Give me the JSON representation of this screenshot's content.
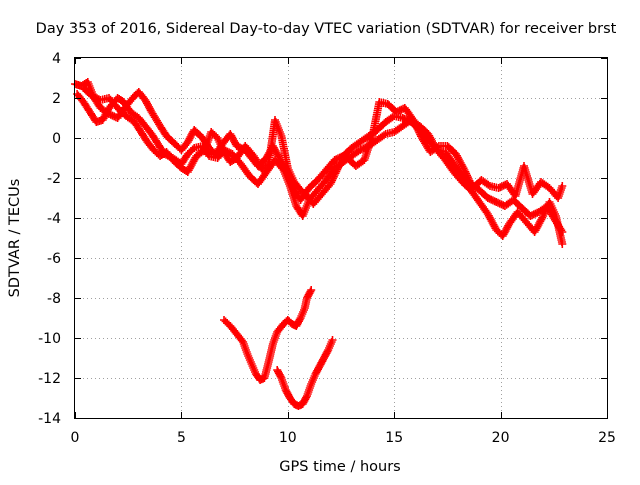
{
  "chart_data": {
    "type": "scatter",
    "title": "Day 353 of 2016, Sidereal Day-to-day VTEC variation (SDTVAR) for receiver brst",
    "xlabel": "GPS time / hours",
    "ylabel": "SDTVAR / TECUs",
    "xlim": [
      0,
      25
    ],
    "ylim": [
      -14,
      4
    ],
    "grid": true,
    "x_ticks": [
      0,
      5,
      10,
      15,
      20,
      25
    ],
    "x_tick_labels": [
      "0",
      "5",
      "10",
      "15",
      "20",
      "25"
    ],
    "y_ticks": [
      4,
      2,
      0,
      -2,
      -4,
      -6,
      -8,
      -10,
      -12,
      -14
    ],
    "y_tick_labels": [
      "4",
      "2",
      "0",
      "-2",
      "-4",
      "-6",
      "-8",
      "-10",
      "-12",
      "-14"
    ],
    "marker": "+",
    "marker_color": "#ff0000",
    "series": [
      {
        "name": "track-1",
        "points": [
          [
            0.0,
            2.7
          ],
          [
            0.3,
            2.6
          ],
          [
            0.6,
            2.8
          ],
          [
            0.9,
            2.0
          ],
          [
            1.2,
            1.5
          ],
          [
            1.6,
            1.2
          ],
          [
            2.0,
            1.0
          ],
          [
            2.4,
            1.6
          ],
          [
            2.8,
            2.1
          ],
          [
            3.0,
            2.3
          ],
          [
            3.3,
            1.9
          ],
          [
            3.6,
            1.3
          ],
          [
            4.0,
            0.6
          ],
          [
            4.3,
            0.1
          ],
          [
            4.7,
            -0.3
          ],
          [
            5.0,
            -0.6
          ],
          [
            5.3,
            -0.2
          ],
          [
            5.6,
            0.4
          ],
          [
            6.0,
            0.0
          ],
          [
            6.3,
            -0.5
          ],
          [
            6.6,
            -0.8
          ],
          [
            7.0,
            -0.2
          ],
          [
            7.3,
            0.2
          ],
          [
            7.6,
            -0.4
          ],
          [
            8.0,
            -0.6
          ],
          [
            8.3,
            -1.0
          ],
          [
            8.6,
            -1.4
          ],
          [
            9.0,
            -1.0
          ],
          [
            9.3,
            -0.4
          ],
          [
            9.6,
            -1.0
          ],
          [
            10.0,
            -1.8
          ],
          [
            10.3,
            -2.6
          ],
          [
            10.6,
            -3.1
          ],
          [
            11.0,
            -2.5
          ],
          [
            11.4,
            -2.1
          ],
          [
            11.8,
            -1.6
          ],
          [
            12.2,
            -1.1
          ],
          [
            12.6,
            -0.9
          ],
          [
            13.0,
            -0.5
          ],
          [
            13.4,
            -0.2
          ],
          [
            13.8,
            0.1
          ],
          [
            14.2,
            0.4
          ],
          [
            14.6,
            0.8
          ],
          [
            15.0,
            1.1
          ],
          [
            15.4,
            1.0
          ],
          [
            15.8,
            0.8
          ],
          [
            16.2,
            0.4
          ],
          [
            16.6,
            -0.1
          ],
          [
            17.0,
            -0.6
          ],
          [
            17.4,
            -0.7
          ],
          [
            17.8,
            -1.3
          ],
          [
            18.2,
            -1.9
          ],
          [
            18.6,
            -2.3
          ],
          [
            19.0,
            -2.6
          ],
          [
            19.4,
            -3.0
          ],
          [
            19.8,
            -3.2
          ],
          [
            20.2,
            -3.4
          ],
          [
            20.6,
            -3.1
          ],
          [
            21.0,
            -3.5
          ],
          [
            21.4,
            -3.9
          ],
          [
            21.8,
            -3.7
          ],
          [
            22.2,
            -3.4
          ],
          [
            22.5,
            -4.0
          ],
          [
            22.9,
            -4.7
          ]
        ]
      },
      {
        "name": "track-2",
        "points": [
          [
            0.1,
            2.2
          ],
          [
            0.4,
            1.8
          ],
          [
            0.7,
            1.3
          ],
          [
            1.0,
            0.8
          ],
          [
            1.3,
            0.9
          ],
          [
            1.6,
            1.5
          ],
          [
            2.0,
            2.0
          ],
          [
            2.3,
            1.8
          ],
          [
            2.6,
            1.3
          ],
          [
            3.0,
            1.0
          ],
          [
            3.3,
            0.6
          ],
          [
            3.6,
            0.2
          ],
          [
            3.9,
            -0.3
          ],
          [
            4.2,
            -0.8
          ],
          [
            4.6,
            -1.0
          ],
          [
            5.0,
            -1.3
          ],
          [
            5.3,
            -0.8
          ],
          [
            5.6,
            -0.5
          ],
          [
            6.0,
            -0.4
          ],
          [
            6.3,
            -0.9
          ],
          [
            6.7,
            -1.0
          ],
          [
            7.0,
            -0.6
          ],
          [
            7.4,
            -0.8
          ],
          [
            7.8,
            -1.3
          ],
          [
            8.2,
            -1.9
          ],
          [
            8.6,
            -2.3
          ],
          [
            9.0,
            -1.7
          ],
          [
            9.4,
            -1.1
          ],
          [
            9.8,
            -1.6
          ],
          [
            10.1,
            -2.4
          ],
          [
            10.4,
            -3.4
          ],
          [
            10.7,
            -3.9
          ],
          [
            11.0,
            -3.1
          ],
          [
            11.4,
            -2.6
          ],
          [
            11.8,
            -2.1
          ],
          [
            12.2,
            -1.5
          ],
          [
            12.6,
            -1.2
          ],
          [
            13.0,
            -0.9
          ],
          [
            13.4,
            -0.6
          ],
          [
            13.8,
            -0.4
          ],
          [
            14.2,
            -0.1
          ],
          [
            14.6,
            0.2
          ],
          [
            15.0,
            0.3
          ],
          [
            15.4,
            0.6
          ],
          [
            15.8,
            0.9
          ],
          [
            16.2,
            0.6
          ],
          [
            16.6,
            0.2
          ],
          [
            17.0,
            -0.6
          ],
          [
            17.4,
            -1.1
          ],
          [
            17.8,
            -1.7
          ],
          [
            18.2,
            -2.2
          ],
          [
            18.6,
            -2.6
          ],
          [
            19.0,
            -3.2
          ],
          [
            19.4,
            -3.8
          ],
          [
            19.8,
            -4.6
          ],
          [
            20.1,
            -4.9
          ],
          [
            20.4,
            -4.3
          ],
          [
            20.8,
            -3.7
          ],
          [
            21.2,
            -4.2
          ],
          [
            21.6,
            -4.7
          ],
          [
            22.0,
            -3.9
          ],
          [
            22.3,
            -3.2
          ],
          [
            22.6,
            -3.9
          ],
          [
            22.9,
            -5.3
          ]
        ]
      },
      {
        "name": "track-3",
        "points": [
          [
            0.4,
            2.5
          ],
          [
            0.8,
            2.1
          ],
          [
            1.2,
            1.9
          ],
          [
            1.6,
            2.0
          ],
          [
            2.0,
            1.5
          ],
          [
            2.4,
            1.1
          ],
          [
            2.8,
            0.8
          ],
          [
            3.1,
            0.3
          ],
          [
            3.4,
            -0.2
          ],
          [
            3.7,
            -0.6
          ],
          [
            4.0,
            -0.9
          ],
          [
            4.3,
            -0.7
          ],
          [
            4.6,
            -1.1
          ],
          [
            5.0,
            -1.5
          ],
          [
            5.3,
            -1.7
          ],
          [
            5.7,
            -0.9
          ],
          [
            6.1,
            -0.6
          ],
          [
            6.4,
            0.3
          ],
          [
            6.7,
            0.0
          ],
          [
            7.0,
            -0.7
          ],
          [
            7.3,
            -1.2
          ],
          [
            7.6,
            -1.0
          ],
          [
            8.0,
            -0.4
          ],
          [
            8.4,
            -0.9
          ],
          [
            8.8,
            -1.6
          ],
          [
            9.1,
            -1.3
          ],
          [
            9.4,
            0.9
          ],
          [
            9.7,
            0.1
          ],
          [
            10.0,
            -1.5
          ],
          [
            10.3,
            -2.2
          ],
          [
            10.6,
            -2.6
          ],
          [
            10.9,
            -2.9
          ],
          [
            11.2,
            -3.3
          ],
          [
            11.6,
            -2.8
          ],
          [
            12.0,
            -2.3
          ],
          [
            12.4,
            -1.4
          ],
          [
            12.8,
            -1.0
          ],
          [
            13.2,
            -1.4
          ],
          [
            13.6,
            -1.1
          ],
          [
            14.0,
            0.2
          ],
          [
            14.3,
            1.8
          ],
          [
            14.7,
            1.7
          ],
          [
            15.1,
            1.3
          ],
          [
            15.5,
            1.5
          ],
          [
            15.9,
            0.9
          ],
          [
            16.3,
            0.0
          ],
          [
            16.7,
            -0.7
          ],
          [
            17.1,
            -0.4
          ],
          [
            17.5,
            -0.4
          ],
          [
            17.9,
            -0.8
          ],
          [
            18.3,
            -1.6
          ],
          [
            18.7,
            -2.5
          ],
          [
            19.1,
            -2.1
          ],
          [
            19.5,
            -2.4
          ],
          [
            19.9,
            -2.5
          ],
          [
            20.3,
            -2.3
          ],
          [
            20.7,
            -2.9
          ],
          [
            21.1,
            -1.4
          ],
          [
            21.5,
            -2.8
          ],
          [
            21.9,
            -2.2
          ],
          [
            22.3,
            -2.5
          ],
          [
            22.7,
            -3.0
          ],
          [
            22.9,
            -2.4
          ]
        ]
      },
      {
        "name": "track-4",
        "points": [
          [
            7.0,
            -9.1
          ],
          [
            7.3,
            -9.4
          ],
          [
            7.6,
            -9.8
          ],
          [
            7.9,
            -10.2
          ],
          [
            8.1,
            -10.8
          ],
          [
            8.3,
            -11.3
          ],
          [
            8.5,
            -11.8
          ],
          [
            8.7,
            -12.1
          ],
          [
            8.9,
            -12.0
          ],
          [
            9.1,
            -11.2
          ],
          [
            9.3,
            -10.3
          ],
          [
            9.5,
            -9.7
          ],
          [
            9.8,
            -9.3
          ],
          [
            10.0,
            -9.1
          ],
          [
            10.2,
            -9.3
          ],
          [
            10.4,
            -9.4
          ],
          [
            10.6,
            -9.0
          ],
          [
            10.8,
            -8.5
          ],
          [
            10.9,
            -8.0
          ],
          [
            11.1,
            -7.6
          ]
        ]
      },
      {
        "name": "track-5",
        "points": [
          [
            9.5,
            -11.6
          ],
          [
            9.7,
            -12.0
          ],
          [
            9.9,
            -12.6
          ],
          [
            10.1,
            -13.0
          ],
          [
            10.3,
            -13.3
          ],
          [
            10.5,
            -13.4
          ],
          [
            10.7,
            -13.3
          ],
          [
            10.9,
            -12.9
          ],
          [
            11.1,
            -12.3
          ],
          [
            11.3,
            -11.8
          ],
          [
            11.5,
            -11.4
          ],
          [
            11.7,
            -11.0
          ],
          [
            11.9,
            -10.6
          ],
          [
            12.1,
            -10.1
          ]
        ]
      }
    ]
  }
}
